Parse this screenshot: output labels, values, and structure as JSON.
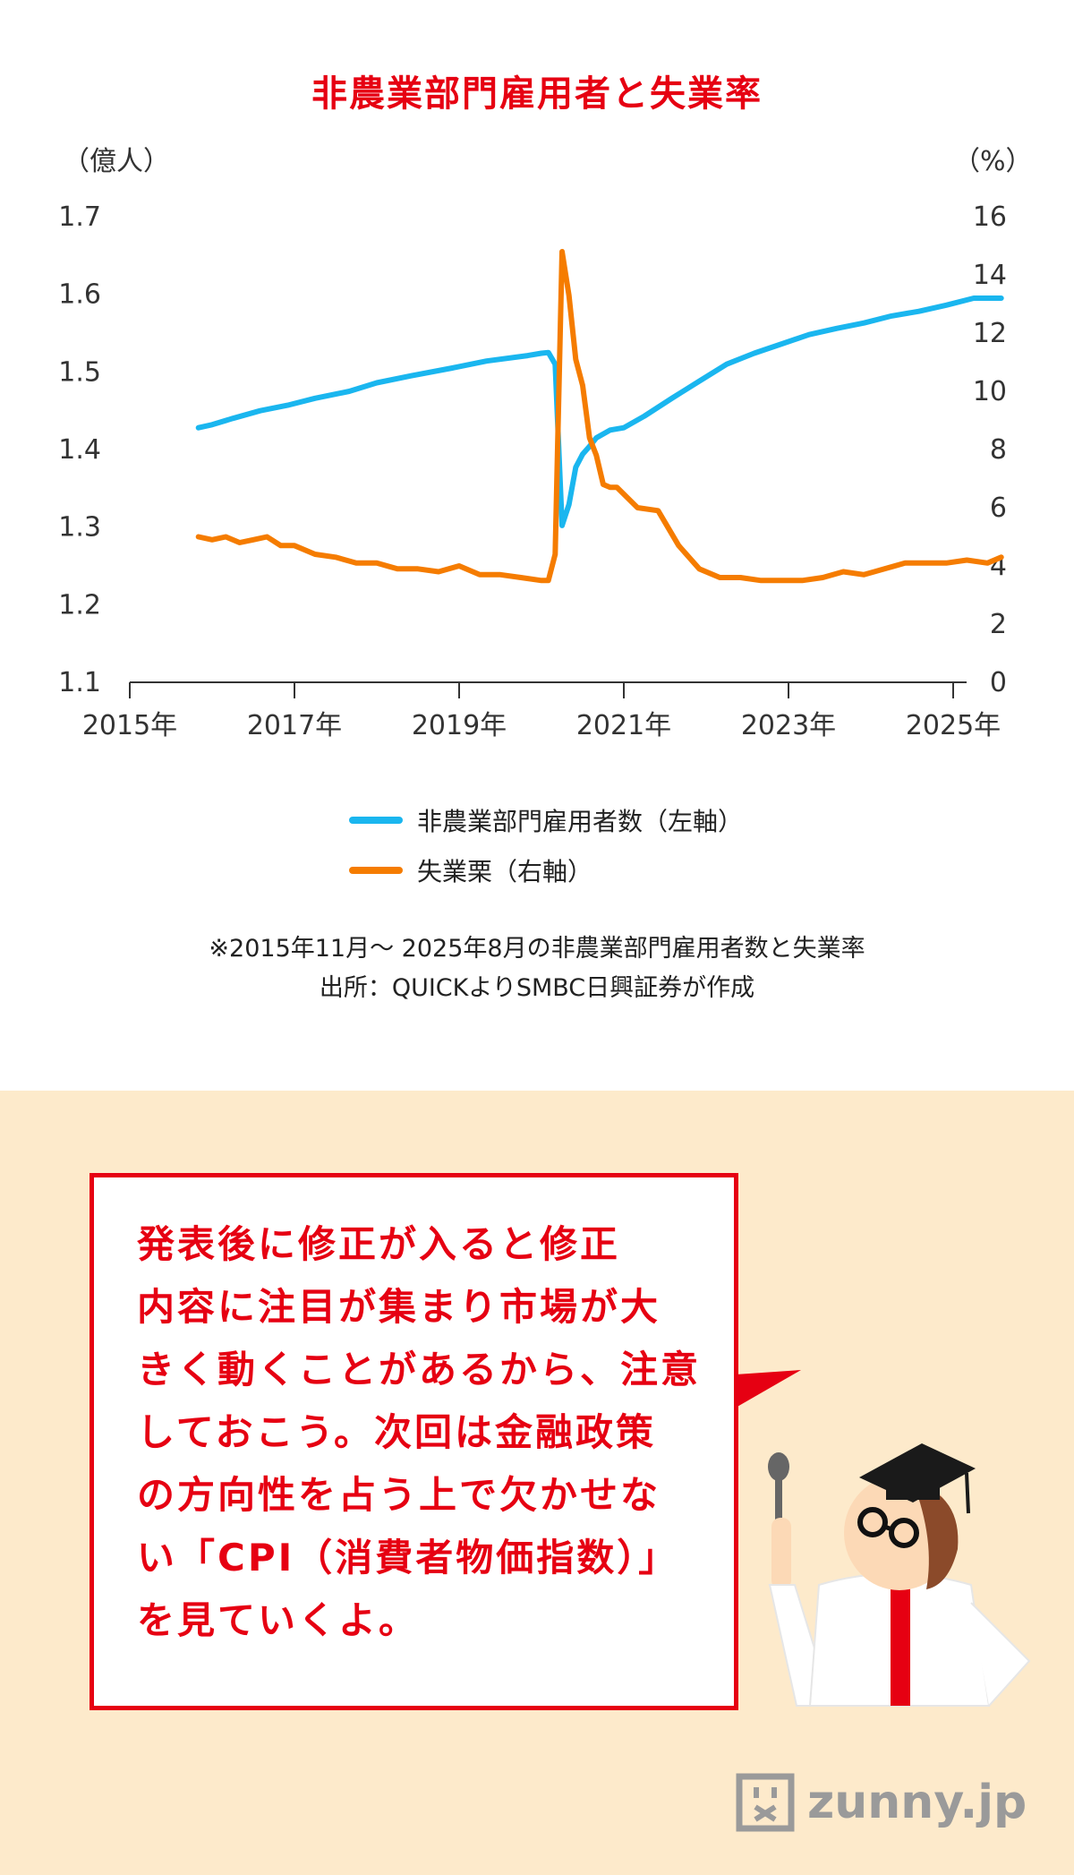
{
  "chart_data": {
    "type": "line",
    "title": "非農業部門雇用者と失業率",
    "left_unit": "（億人）",
    "right_unit": "（%）",
    "left_ylim": [
      1.1,
      1.7
    ],
    "left_ticks": [
      "1.7",
      "1.6",
      "1.5",
      "1.4",
      "1.3",
      "1.2",
      "1.1"
    ],
    "right_ylim": [
      0,
      16
    ],
    "right_ticks": [
      "16",
      "14",
      "12",
      "10",
      "8",
      "6",
      "4",
      "2",
      "0"
    ],
    "x_ticks": [
      "2015年",
      "2017年",
      "2019年",
      "2021年",
      "2023年",
      "2025年"
    ],
    "series": [
      {
        "name": "非農業部門雇用者数（左軸）",
        "axis": "left",
        "color": "#1ab6ef",
        "points": [
          [
            "2015-11",
            1.428
          ],
          [
            "2016-01",
            1.432
          ],
          [
            "2016-04",
            1.44
          ],
          [
            "2016-08",
            1.45
          ],
          [
            "2016-12",
            1.457
          ],
          [
            "2017-04",
            1.466
          ],
          [
            "2017-09",
            1.475
          ],
          [
            "2018-01",
            1.486
          ],
          [
            "2018-06",
            1.495
          ],
          [
            "2018-12",
            1.505
          ],
          [
            "2019-05",
            1.514
          ],
          [
            "2019-11",
            1.521
          ],
          [
            "2020-01",
            1.524
          ],
          [
            "2020-02",
            1.525
          ],
          [
            "2020-03",
            1.51
          ],
          [
            "2020-04",
            1.302
          ],
          [
            "2020-05",
            1.329
          ],
          [
            "2020-06",
            1.377
          ],
          [
            "2020-07",
            1.394
          ],
          [
            "2020-08",
            1.404
          ],
          [
            "2020-09",
            1.415
          ],
          [
            "2020-11",
            1.425
          ],
          [
            "2021-01",
            1.428
          ],
          [
            "2021-04",
            1.443
          ],
          [
            "2021-08",
            1.466
          ],
          [
            "2021-12",
            1.488
          ],
          [
            "2022-04",
            1.51
          ],
          [
            "2022-08",
            1.524
          ],
          [
            "2022-12",
            1.536
          ],
          [
            "2023-04",
            1.548
          ],
          [
            "2023-08",
            1.556
          ],
          [
            "2023-12",
            1.563
          ],
          [
            "2024-04",
            1.572
          ],
          [
            "2024-08",
            1.578
          ],
          [
            "2024-12",
            1.586
          ],
          [
            "2025-04",
            1.595
          ],
          [
            "2025-08",
            1.595
          ]
        ]
      },
      {
        "name": "失業栗（右軸）",
        "axis": "right",
        "color": "#f57c00",
        "points": [
          [
            "2015-11",
            5.0
          ],
          [
            "2016-01",
            4.9
          ],
          [
            "2016-03",
            5.0
          ],
          [
            "2016-05",
            4.8
          ],
          [
            "2016-07",
            4.9
          ],
          [
            "2016-09",
            5.0
          ],
          [
            "2016-11",
            4.7
          ],
          [
            "2017-01",
            4.7
          ],
          [
            "2017-04",
            4.4
          ],
          [
            "2017-07",
            4.3
          ],
          [
            "2017-10",
            4.1
          ],
          [
            "2018-01",
            4.1
          ],
          [
            "2018-04",
            3.9
          ],
          [
            "2018-07",
            3.9
          ],
          [
            "2018-10",
            3.8
          ],
          [
            "2019-01",
            4.0
          ],
          [
            "2019-04",
            3.7
          ],
          [
            "2019-07",
            3.7
          ],
          [
            "2019-10",
            3.6
          ],
          [
            "2020-01",
            3.5
          ],
          [
            "2020-02",
            3.5
          ],
          [
            "2020-03",
            4.4
          ],
          [
            "2020-04",
            14.8
          ],
          [
            "2020-05",
            13.3
          ],
          [
            "2020-06",
            11.1
          ],
          [
            "2020-07",
            10.2
          ],
          [
            "2020-08",
            8.4
          ],
          [
            "2020-09",
            7.8
          ],
          [
            "2020-10",
            6.8
          ],
          [
            "2020-11",
            6.7
          ],
          [
            "2020-12",
            6.7
          ],
          [
            "2021-03",
            6.0
          ],
          [
            "2021-06",
            5.9
          ],
          [
            "2021-09",
            4.7
          ],
          [
            "2021-12",
            3.9
          ],
          [
            "2022-03",
            3.6
          ],
          [
            "2022-06",
            3.6
          ],
          [
            "2022-09",
            3.5
          ],
          [
            "2022-12",
            3.5
          ],
          [
            "2023-03",
            3.5
          ],
          [
            "2023-06",
            3.6
          ],
          [
            "2023-09",
            3.8
          ],
          [
            "2023-12",
            3.7
          ],
          [
            "2024-03",
            3.9
          ],
          [
            "2024-06",
            4.1
          ],
          [
            "2024-09",
            4.1
          ],
          [
            "2024-12",
            4.1
          ],
          [
            "2025-03",
            4.2
          ],
          [
            "2025-06",
            4.1
          ],
          [
            "2025-08",
            4.3
          ]
        ]
      }
    ]
  },
  "note": {
    "line1": "※2015年11月〜 2025年8月の非農業部門雇用者数と失業率",
    "line2": "出所：QUICKよりSMBC日興証券が作成"
  },
  "speech": {
    "line1": "発表後に修正が入ると修正",
    "line2": "内容に注目が集まり市場が大",
    "line3": "きく動くことがあるから、注意",
    "line4": "しておこう。次回は金融政策",
    "line5": "の方向性を占う上で欠かせな",
    "line6": "い「CPI（消費者物価指数）」",
    "line7": "を見ていくよ。"
  },
  "logo": {
    "text": "zunny.jp"
  },
  "colors": {
    "accent": "#e60012",
    "panel": "#fdeacb",
    "employment": "#1ab6ef",
    "unemployment": "#f57c00"
  }
}
